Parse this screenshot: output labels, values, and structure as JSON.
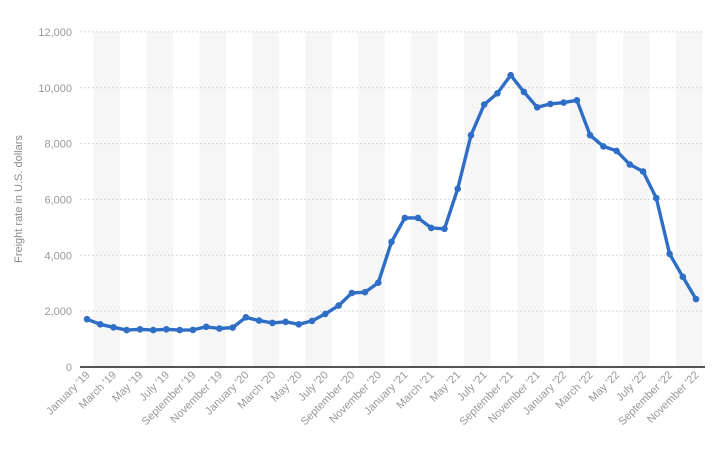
{
  "chart_data": {
    "type": "line",
    "title": "",
    "xlabel": "",
    "ylabel": "Freight rate in U.S. dollars",
    "ylim": [
      0,
      12000
    ],
    "ytick_step": 2000,
    "ytick_labels": [
      "0",
      "2,000",
      "4,000",
      "6,000",
      "8,000",
      "10,000",
      "12,000"
    ],
    "grid": "horizontal-dotted",
    "legend": "none",
    "xtick_every": 2,
    "categories": [
      "January '19",
      "February '19",
      "March '19",
      "April '19",
      "May '19",
      "June '19",
      "July '19",
      "August '19",
      "September '19",
      "October '19",
      "November '19",
      "December '19",
      "January '20",
      "February '20",
      "March '20",
      "April '20",
      "May '20",
      "June '20",
      "July '20",
      "August '20",
      "September '20",
      "October '20",
      "November '20",
      "December '20",
      "January '21",
      "February '21",
      "March '21",
      "April '21",
      "May '21",
      "June '21",
      "July '21",
      "August '21",
      "September '21",
      "October '21",
      "November '21",
      "December '21",
      "January '22",
      "February '22",
      "March '22",
      "April '22",
      "May '22",
      "June '22",
      "July '22",
      "August '22",
      "September '22",
      "October '22",
      "November '22"
    ],
    "series": [
      {
        "name": "Freight rate in U.S. dollars",
        "values": [
          1710,
          1530,
          1420,
          1320,
          1350,
          1320,
          1350,
          1320,
          1330,
          1440,
          1380,
          1410,
          1780,
          1660,
          1580,
          1620,
          1530,
          1650,
          1900,
          2200,
          2650,
          2680,
          3020,
          4480,
          5340,
          5340,
          4980,
          4950,
          6380,
          8300,
          9400,
          9800,
          10450,
          9850,
          9300,
          9420,
          9470,
          9550,
          8300,
          7900,
          7740,
          7250,
          7000,
          6050,
          4050,
          3230,
          2430
        ]
      }
    ],
    "colors": {
      "line": "#2f6ec7",
      "stripe": "#f6f6f6",
      "gridline": "#cccccc",
      "axis_line": "#1a1a1a",
      "tick_text": "#999999",
      "axis_title_text": "#8c8c8c"
    }
  }
}
